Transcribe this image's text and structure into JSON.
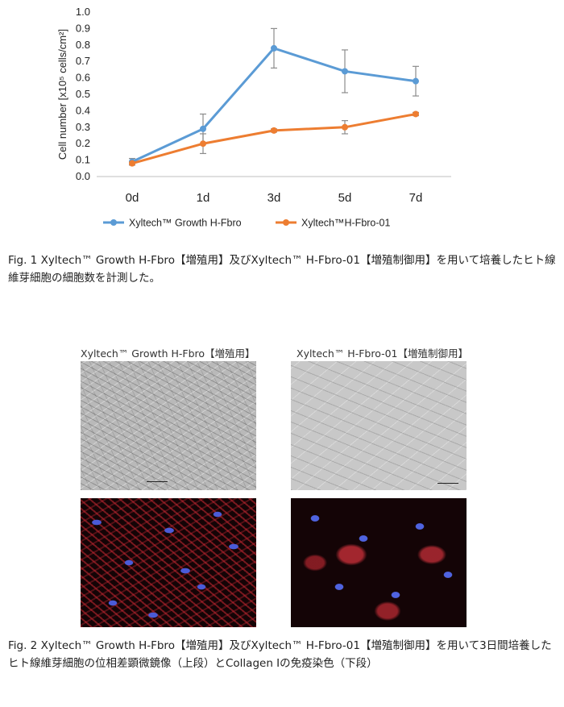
{
  "chart_data": {
    "type": "line",
    "categories": [
      "0d",
      "1d",
      "3d",
      "5d",
      "7d"
    ],
    "ylabel": "Cell number  [x10⁵ cells/cm²]",
    "ylim": [
      0,
      1.0
    ],
    "yticks": [
      "0.0",
      "0.1",
      "0.2",
      "0.3",
      "0.4",
      "0.5",
      "0.6",
      "0.7",
      "0.8",
      "0.9",
      "1.0"
    ],
    "grid": false,
    "legend_position": "bottom",
    "series": [
      {
        "name": "Xyltech™ Growth H-Fbro",
        "color": "#5b9bd5",
        "values": [
          0.09,
          0.29,
          0.78,
          0.64,
          0.58
        ],
        "errors": [
          0.02,
          0.09,
          0.12,
          0.13,
          0.09
        ]
      },
      {
        "name": "Xyltech™H-Fbro-01",
        "color": "#ed7d31",
        "values": [
          0.08,
          0.2,
          0.28,
          0.3,
          0.38
        ],
        "errors": [
          0.01,
          0.06,
          0.01,
          0.04,
          0.01
        ]
      }
    ]
  },
  "captions": {
    "fig1": "Fig. 1 Xyltech™ Growth H-Fbro【増殖用】及びXyltech™  H-Fbro-01【増殖制御用】を用いて培養したヒト線維芽細胞の細胞数を計測した。",
    "fig2": "Fig.  2  Xyltech™  Growth  H-Fbro【増殖用】及びXyltech™  H-Fbro-01【増殖制御用】を用いて3日間培養したヒト線維芽細胞の位相差顕微鏡像（上段）とCollagen Ⅰの免疫染色（下段）"
  },
  "micrographs": {
    "left_title": "Xyltech™ Growth H-Fbro【増殖用】",
    "right_title": "Xyltech™ H-Fbro-01【増殖制御用】"
  }
}
